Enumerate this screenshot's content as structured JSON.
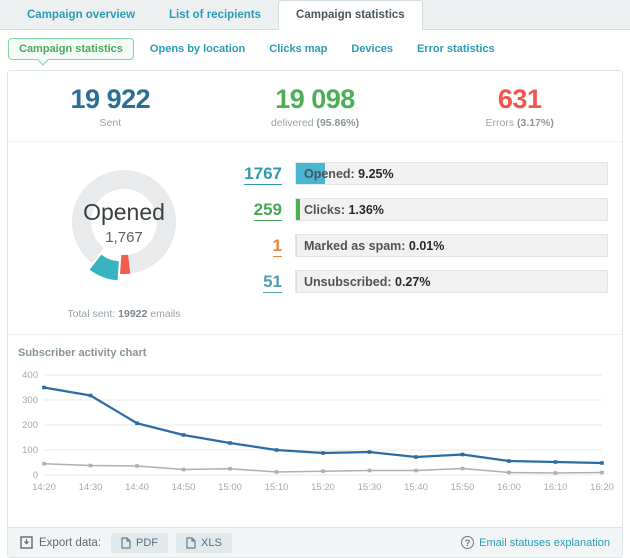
{
  "tabs": [
    {
      "label": "Campaign overview"
    },
    {
      "label": "List of recipients"
    },
    {
      "label": "Campaign statistics",
      "active": true
    }
  ],
  "subnav": [
    {
      "label": "Campaign statistics",
      "active": true
    },
    {
      "label": "Opens by location"
    },
    {
      "label": "Clicks map"
    },
    {
      "label": "Devices"
    },
    {
      "label": "Error statistics"
    }
  ],
  "summary": [
    {
      "value": "19 922",
      "label": "Sent",
      "percent": "",
      "color": "#2b6e96"
    },
    {
      "value": "19 098",
      "label": "delivered ",
      "percent": "(95.86%)",
      "color": "#4caf55"
    },
    {
      "value": "631",
      "label": "Errors ",
      "percent": "(3.17%)",
      "color": "#f0554e"
    }
  ],
  "donut_total": {
    "prefix": "Total sent:",
    "value": "19922",
    "suffix": "emails"
  },
  "stat_rows": [
    {
      "value": "1767",
      "value_color": "#2e9ab2",
      "label": "Opened: ",
      "percent": "9.25%",
      "fill_pct": 9.25,
      "fill_color": "#49b7d2"
    },
    {
      "value": "259",
      "value_color": "#4aa759",
      "label": "Clicks: ",
      "percent": "1.36%",
      "fill_pct": 1.36,
      "fill_color": "#4caf50"
    },
    {
      "value": "1",
      "value_color": "#e8863c",
      "label": "Marked as spam: ",
      "percent": "0.01%",
      "fill_pct": 0.01,
      "fill_color": "#dcdcdd"
    },
    {
      "value": "51",
      "value_color": "#55a0b0",
      "label": "Unsubscribed: ",
      "percent": "0.27%",
      "fill_pct": 0.27,
      "fill_color": "#dcdcdd"
    }
  ],
  "chart_header": "Subscriber activity chart",
  "chart_data": [
    {
      "type": "donut",
      "center_label": "Opened",
      "center_value": "1,767",
      "start_angle": 83,
      "track_color": "#e9eaec",
      "segments": [
        {
          "name": "errors",
          "value_pct": 3.17,
          "color": "#f15b50"
        },
        {
          "name": "opened",
          "value_pct": 9.25,
          "color": "#39b3c0",
          "exploded": true
        }
      ]
    },
    {
      "type": "line",
      "title": "Subscriber activity chart",
      "x": [
        "14:20",
        "14:30",
        "14:40",
        "14:50",
        "15:00",
        "15:10",
        "15:20",
        "15:30",
        "15:40",
        "15:50",
        "16:00",
        "16:10",
        "16:20"
      ],
      "series": [
        {
          "name": "opens",
          "color": "#2a6da5",
          "values": [
            350,
            318,
            207,
            160,
            128,
            100,
            88,
            92,
            72,
            82,
            56,
            52,
            48
          ]
        },
        {
          "name": "clicks",
          "color": "#a9b1b6",
          "values": [
            45,
            38,
            36,
            22,
            25,
            12,
            15,
            18,
            18,
            26,
            10,
            8,
            10
          ]
        }
      ],
      "ylim": [
        0,
        400
      ],
      "yticks": [
        0,
        100,
        200,
        300,
        400
      ],
      "grid": "horizontal",
      "legend": "none"
    }
  ],
  "footer": {
    "export_label": "Export data:",
    "buttons": [
      {
        "label": "PDF"
      },
      {
        "label": "XLS"
      }
    ],
    "help_link": "Email statuses explanation"
  }
}
